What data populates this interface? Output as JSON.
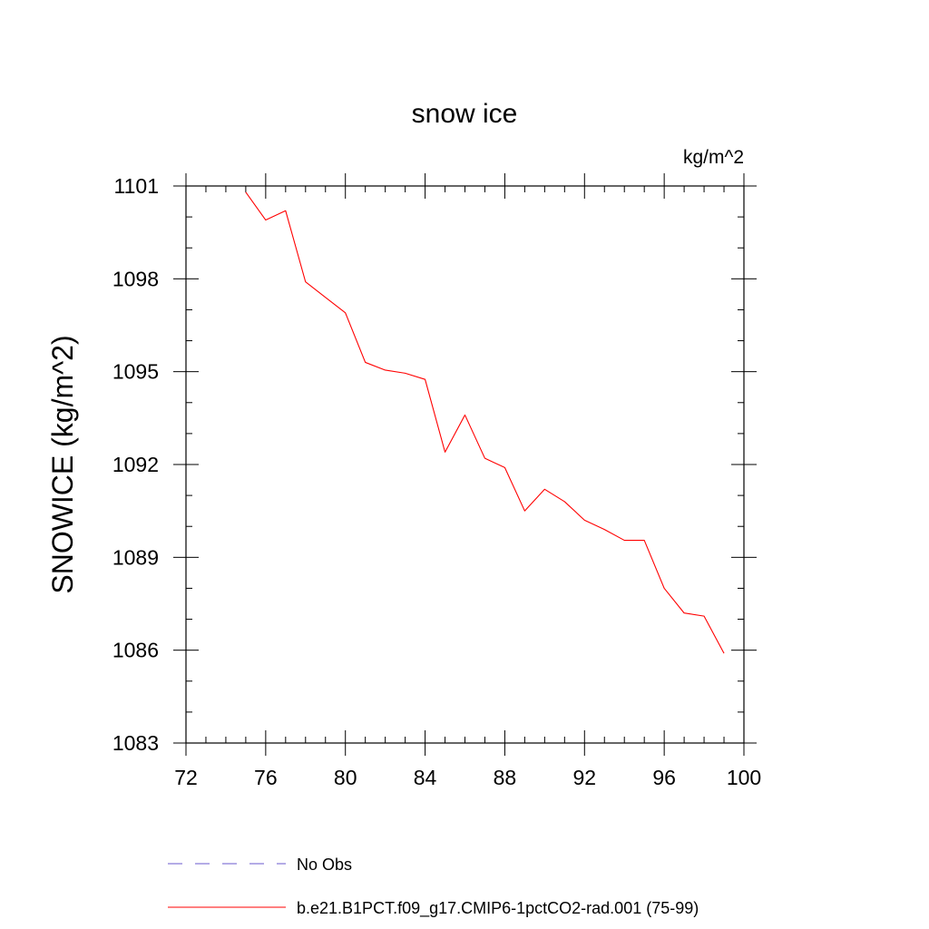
{
  "chart_data": {
    "type": "line",
    "title": "snow ice",
    "units": "kg/m^2",
    "xlabel": "",
    "ylabel": "SNOWICE  (kg/m^2)",
    "xlim": [
      72,
      100
    ],
    "ylim": [
      1083,
      1101
    ],
    "x_ticks": [
      72,
      76,
      80,
      84,
      88,
      92,
      96,
      100
    ],
    "y_ticks": [
      1083,
      1086,
      1089,
      1092,
      1095,
      1098,
      1101
    ],
    "x_minor_step": 1,
    "y_minor_step": 1,
    "grid": false,
    "legend_placement": "bottom",
    "legend": [
      {
        "label": "No Obs",
        "color": "#6a5acd",
        "style": "dashed"
      },
      {
        "label": "b.e21.B1PCT.f09_g17.CMIP6-1pctCO2-rad.001 (75-99)",
        "color": "#ff0000",
        "style": "solid"
      }
    ],
    "series": [
      {
        "name": "b.e21.B1PCT.f09_g17.CMIP6-1pctCO2-rad.001 (75-99)",
        "color": "#ff0000",
        "x": [
          75,
          76,
          77,
          78,
          79,
          80,
          81,
          82,
          83,
          84,
          85,
          86,
          87,
          88,
          89,
          90,
          91,
          92,
          93,
          94,
          95,
          96,
          97,
          98,
          99
        ],
        "y": [
          1100.8,
          1099.9,
          1100.2,
          1097.9,
          1097.4,
          1096.9,
          1095.3,
          1095.05,
          1094.95,
          1094.75,
          1092.4,
          1093.6,
          1092.2,
          1091.9,
          1090.5,
          1091.2,
          1090.8,
          1090.2,
          1089.9,
          1089.55,
          1089.55,
          1088.0,
          1087.2,
          1087.1,
          1085.9
        ]
      }
    ]
  }
}
